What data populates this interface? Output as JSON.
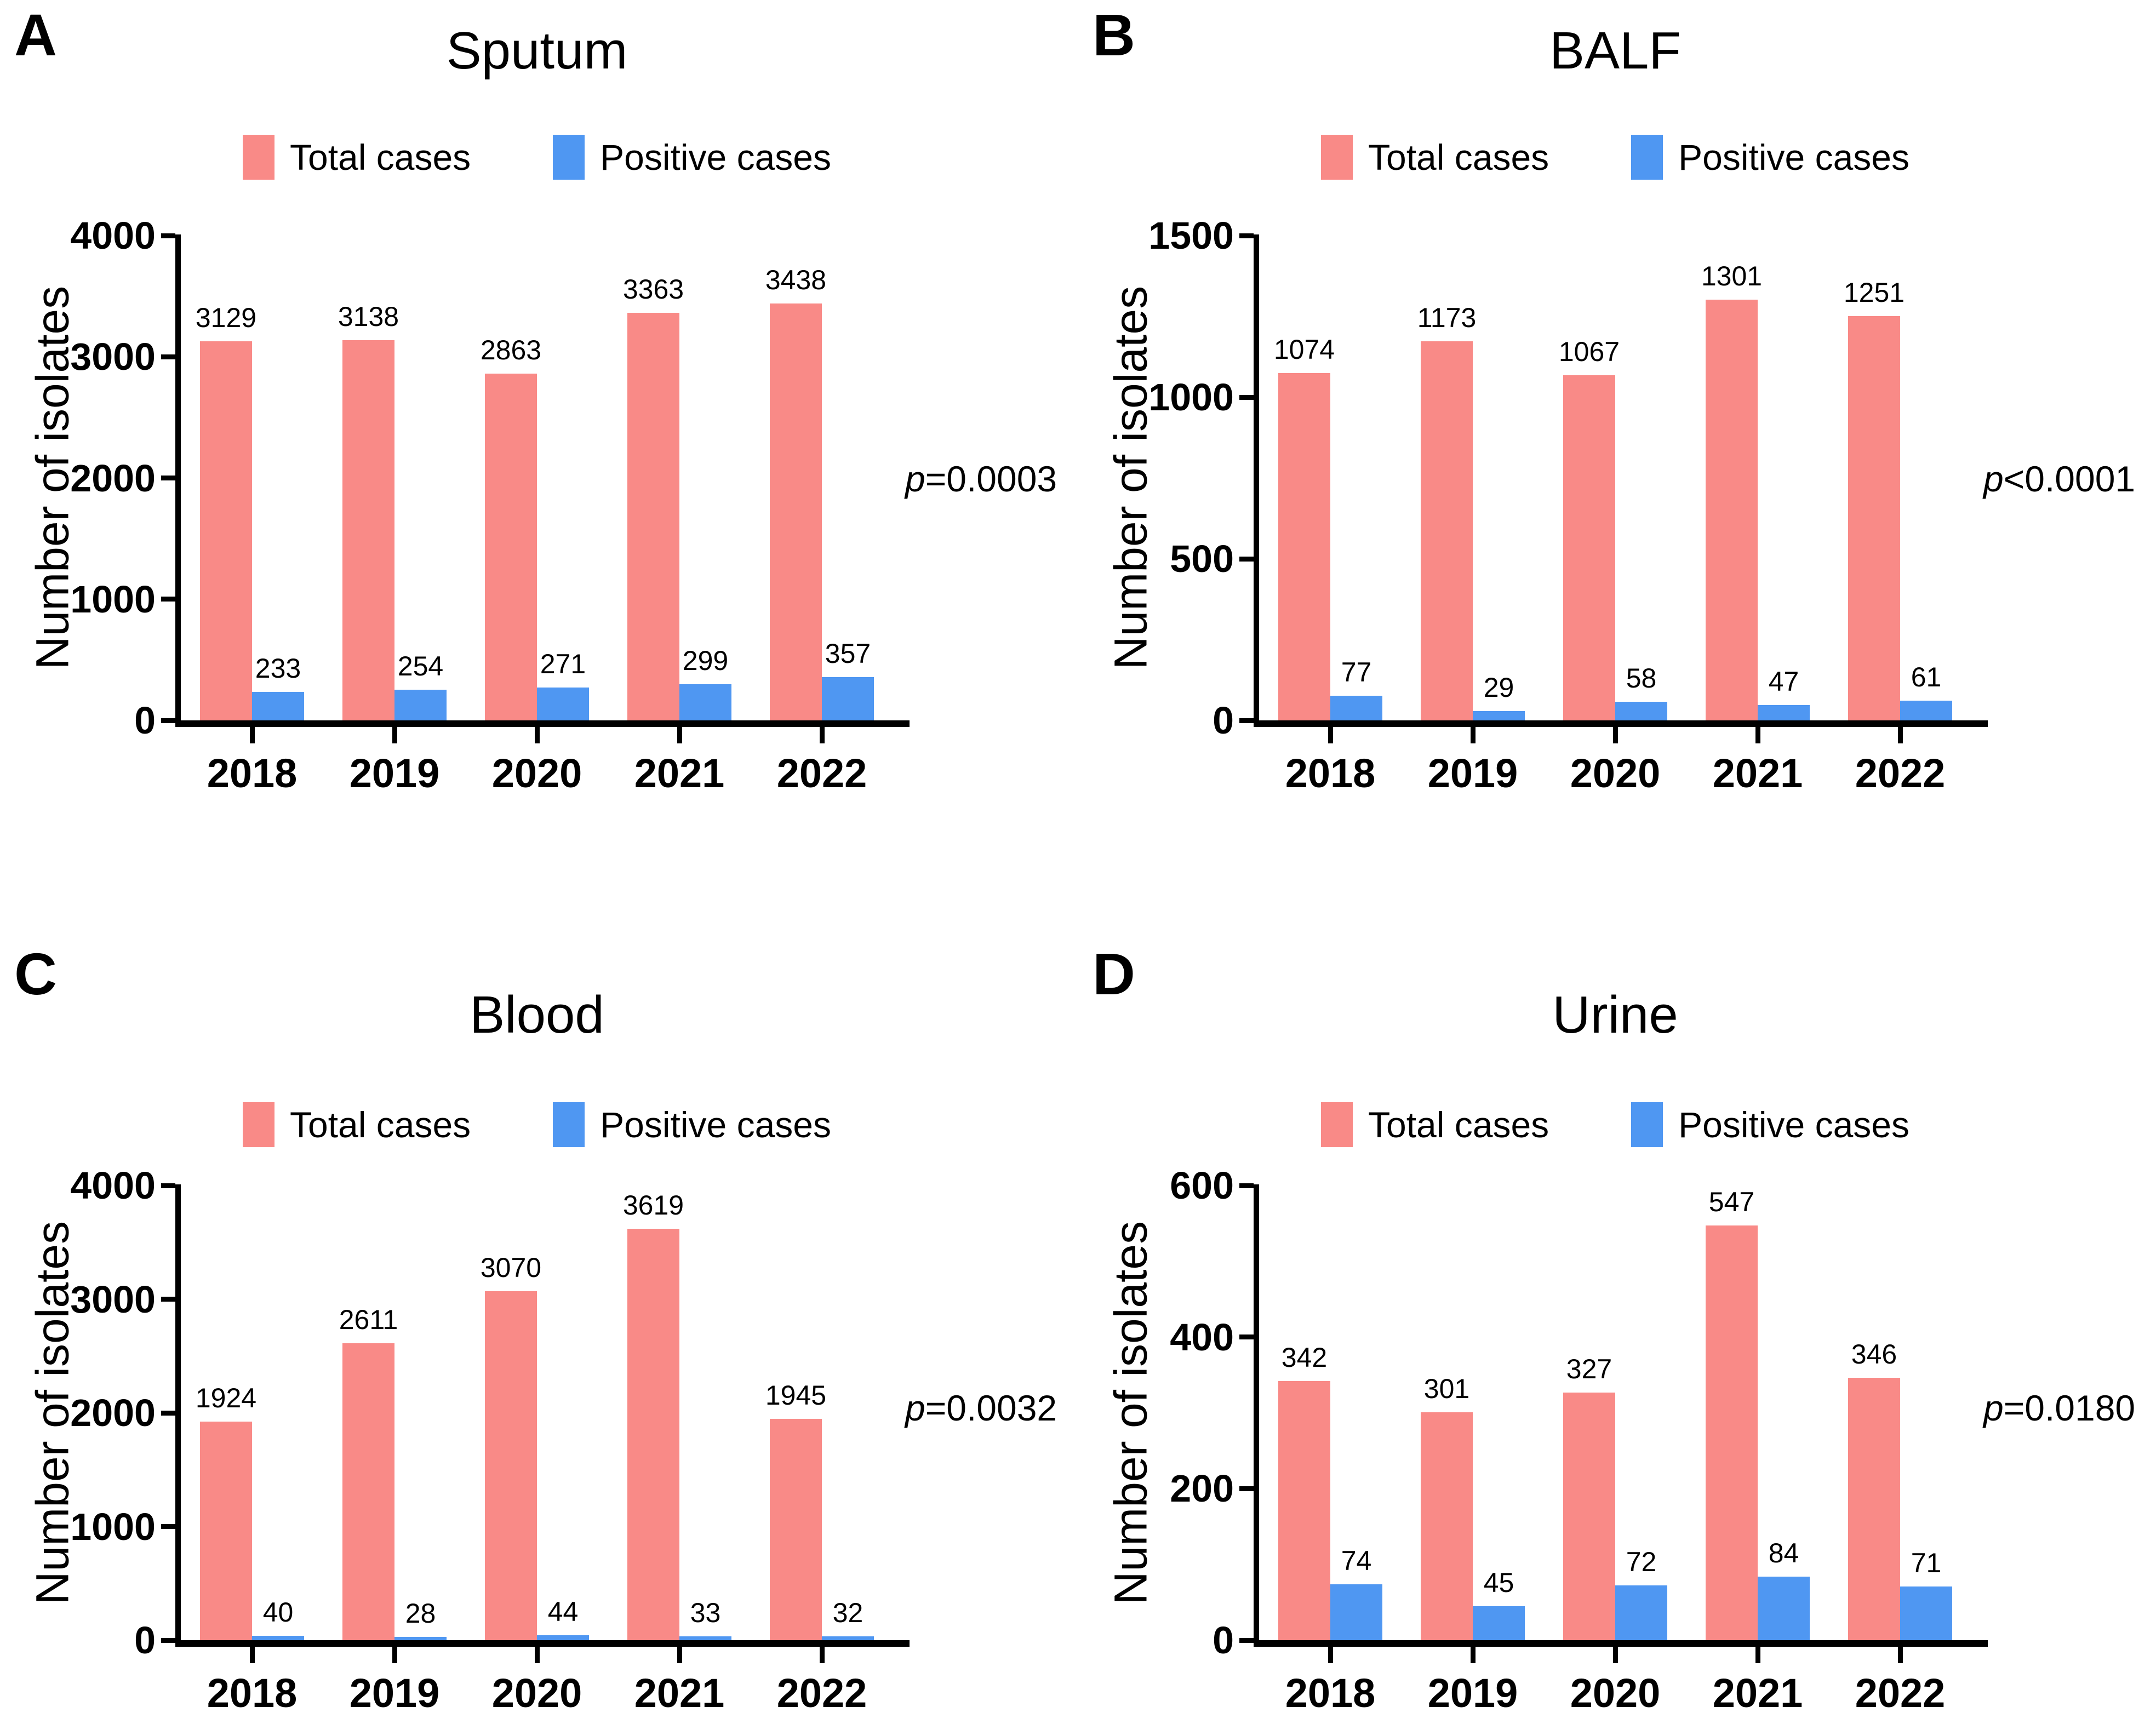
{
  "legend": {
    "total_label": "Total cases",
    "positive_label": "Positive cases"
  },
  "colors": {
    "total": "#F98A87",
    "positive": "#4F97F2",
    "axis": "#000000",
    "background": "#FFFFFF"
  },
  "chart_data": [
    {
      "type": "bar",
      "panel_letter": "A",
      "title": "Sputum",
      "ylabel": "Number of isolates",
      "categories": [
        "2018",
        "2019",
        "2020",
        "2021",
        "2022"
      ],
      "series": [
        {
          "name": "Total cases",
          "color": "#F98A87",
          "values": [
            3129,
            3138,
            2863,
            3363,
            3438
          ]
        },
        {
          "name": "Positive cases",
          "color": "#4F97F2",
          "values": [
            233,
            254,
            271,
            299,
            357
          ]
        }
      ],
      "p_italic": "p",
      "p_rest": "=0.0003",
      "ylim": [
        0,
        4000
      ],
      "yticks": [
        0,
        1000,
        2000,
        3000,
        4000
      ],
      "legend_position": "top",
      "grid": false
    },
    {
      "type": "bar",
      "panel_letter": "B",
      "title": "BALF",
      "ylabel": "Number of isolates",
      "categories": [
        "2018",
        "2019",
        "2020",
        "2021",
        "2022"
      ],
      "series": [
        {
          "name": "Total cases",
          "color": "#F98A87",
          "values": [
            1074,
            1173,
            1067,
            1301,
            1251
          ]
        },
        {
          "name": "Positive cases",
          "color": "#4F97F2",
          "values": [
            77,
            29,
            58,
            47,
            61
          ]
        }
      ],
      "p_italic": "p",
      "p_rest": "<0.0001",
      "ylim": [
        0,
        1500
      ],
      "yticks": [
        0,
        500,
        1000,
        1500
      ],
      "legend_position": "top",
      "grid": false
    },
    {
      "type": "bar",
      "panel_letter": "C",
      "title": "Blood",
      "ylabel": "Number of isolates",
      "categories": [
        "2018",
        "2019",
        "2020",
        "2021",
        "2022"
      ],
      "series": [
        {
          "name": "Total cases",
          "color": "#F98A87",
          "values": [
            1924,
            2611,
            3070,
            3619,
            1945
          ]
        },
        {
          "name": "Positive cases",
          "color": "#4F97F2",
          "values": [
            40,
            28,
            44,
            33,
            32
          ]
        }
      ],
      "p_italic": "p",
      "p_rest": "=0.0032",
      "ylim": [
        0,
        4000
      ],
      "yticks": [
        0,
        1000,
        2000,
        3000,
        4000
      ],
      "legend_position": "top",
      "grid": false
    },
    {
      "type": "bar",
      "panel_letter": "D",
      "title": "Urine",
      "ylabel": "Number of isolates",
      "categories": [
        "2018",
        "2019",
        "2020",
        "2021",
        "2022"
      ],
      "series": [
        {
          "name": "Total cases",
          "color": "#F98A87",
          "values": [
            342,
            301,
            327,
            547,
            346
          ]
        },
        {
          "name": "Positive cases",
          "color": "#4F97F2",
          "values": [
            74,
            45,
            72,
            84,
            71
          ]
        }
      ],
      "p_italic": "p",
      "p_rest": "=0.0180",
      "ylim": [
        0,
        600
      ],
      "yticks": [
        0,
        200,
        400,
        600
      ],
      "legend_position": "top",
      "grid": false
    }
  ]
}
